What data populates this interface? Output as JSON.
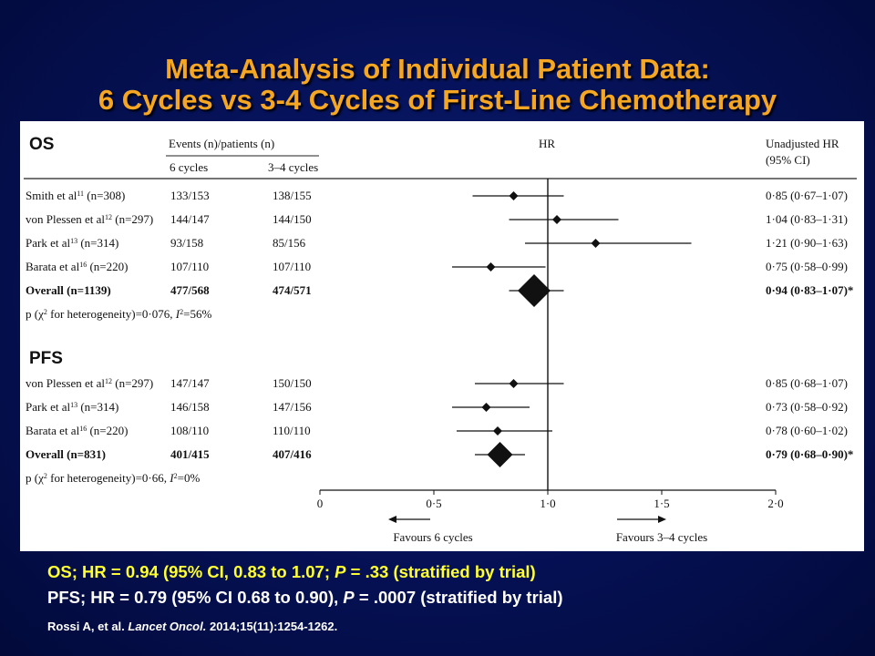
{
  "title": {
    "line1": "Meta-Analysis of Individual Patient Data:",
    "line2": "6 Cycles vs 3-4 Cycles of First-Line Chemotherapy"
  },
  "panel": {
    "os_label": "OS",
    "pfs_label": "PFS",
    "events_header": "Events (n)/patients (n)",
    "col_6": "6 cycles",
    "col_34": "3–4 cycles",
    "hr_header": "HR",
    "unadj_header_1": "Unadjusted HR",
    "unadj_header_2": "(95% CI)",
    "favours_left": "Favours 6 cycles",
    "favours_right": "Favours 3–4 cycles"
  },
  "chart_data": {
    "type": "forest",
    "xlim": [
      0,
      2.0
    ],
    "x_ticks": [
      "0",
      "0·5",
      "1·0",
      "1·5",
      "2·0"
    ],
    "reference_line": 1.0,
    "sections": [
      {
        "label": "OS",
        "rows": [
          {
            "study": "Smith et al",
            "ref": "11",
            "n": "(n=308)",
            "ev6": "133/153",
            "ev34": "138/155",
            "hr": 0.85,
            "lo": 0.67,
            "hi": 1.07,
            "text": "0·85 (0·67–1·07)"
          },
          {
            "study": "von Plessen et al",
            "ref": "12",
            "n": "(n=297)",
            "ev6": "144/147",
            "ev34": "144/150",
            "hr": 1.04,
            "lo": 0.83,
            "hi": 1.31,
            "text": "1·04 (0·83–1·31)"
          },
          {
            "study": "Park et al",
            "ref": "13",
            "n": "(n=314)",
            "ev6": "93/158",
            "ev34": "85/156",
            "hr": 1.21,
            "lo": 0.9,
            "hi": 1.63,
            "text": "1·21 (0·90–1·63)"
          },
          {
            "study": "Barata et al",
            "ref": "16",
            "n": "(n=220)",
            "ev6": "107/110",
            "ev34": "107/110",
            "hr": 0.75,
            "lo": 0.58,
            "hi": 0.99,
            "text": "0·75 (0·58–0·99)"
          }
        ],
        "overall": {
          "label": "Overall (n=1139)",
          "ev6": "477/568",
          "ev34": "474/571",
          "hr": 0.94,
          "lo": 0.83,
          "hi": 1.07,
          "text": "0·94 (0·83–1·07)*"
        },
        "heterogeneity": {
          "prefix": "p (χ",
          "sup": "2",
          "mid": " for heterogeneity)=0·076, ",
          "i2": "I",
          "i2sup": "2",
          "rest": "=56%"
        }
      },
      {
        "label": "PFS",
        "rows": [
          {
            "study": "von Plessen et al",
            "ref": "12",
            "n": "(n=297)",
            "ev6": "147/147",
            "ev34": "150/150",
            "hr": 0.85,
            "lo": 0.68,
            "hi": 1.07,
            "text": "0·85 (0·68–1·07)"
          },
          {
            "study": "Park et al",
            "ref": "13",
            "n": "(n=314)",
            "ev6": "146/158",
            "ev34": "147/156",
            "hr": 0.73,
            "lo": 0.58,
            "hi": 0.92,
            "text": "0·73 (0·58–0·92)"
          },
          {
            "study": "Barata et al",
            "ref": "16",
            "n": "(n=220)",
            "ev6": "108/110",
            "ev34": "110/110",
            "hr": 0.78,
            "lo": 0.6,
            "hi": 1.02,
            "text": "0·78 (0·60–1·02)"
          }
        ],
        "overall": {
          "label": "Overall (n=831)",
          "ev6": "401/415",
          "ev34": "407/416",
          "hr": 0.79,
          "lo": 0.68,
          "hi": 0.9,
          "text": "0·79 (0·68–0·90)*"
        },
        "heterogeneity": {
          "prefix": "p (χ",
          "sup": "2",
          "mid": " for heterogeneity)=0·66, ",
          "i2": "I",
          "i2sup": "2",
          "rest": "=0%"
        }
      }
    ]
  },
  "footnotes": {
    "os_a": "OS; HR = 0.94 (95% CI, 0.83 to 1.07; ",
    "os_p": "P",
    "os_b": " = .33 (stratified by trial)",
    "pfs_a": "PFS; HR = 0.79 (95% CI 0.68 to 0.90), ",
    "pfs_p": "P",
    "pfs_b": " = .0007 (stratified by trial)"
  },
  "citation": {
    "authors": "Rossi A, et al. ",
    "journal": "Lancet Oncol.",
    "rest": " 2014;15(11):1254-1262."
  },
  "colors": {
    "title": "#f5a623",
    "os_footnote": "#ffff33",
    "pfs_footnote": "#ffffff",
    "background": "#06125a"
  }
}
